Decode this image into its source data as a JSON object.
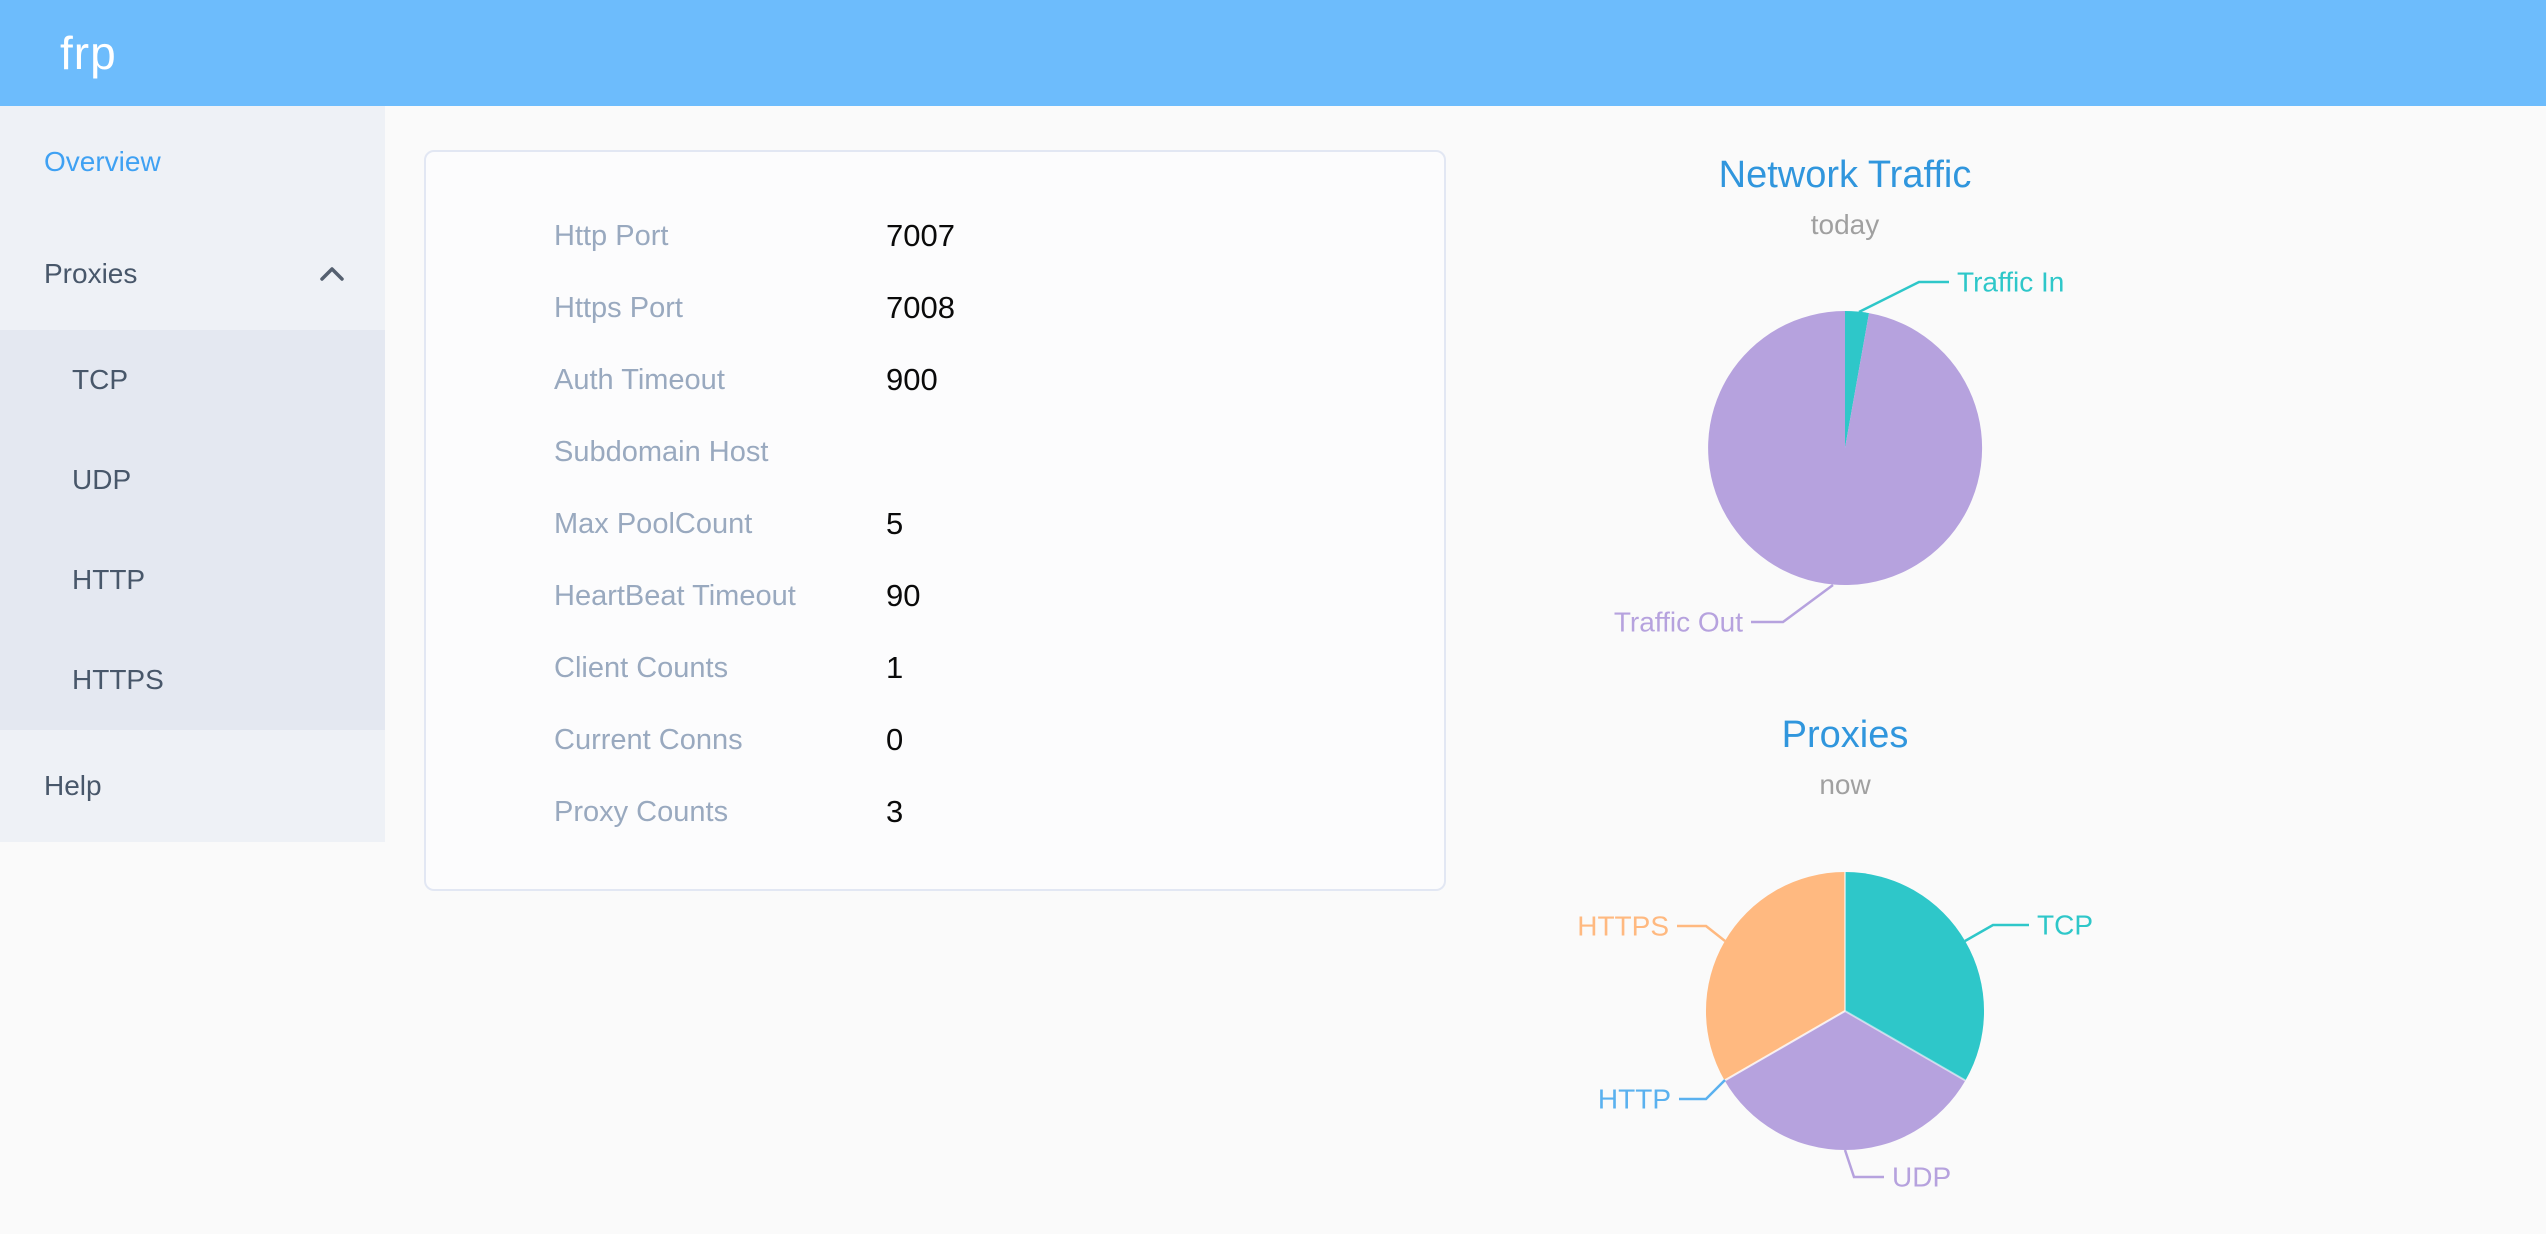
{
  "header": {
    "logo": "frp"
  },
  "sidebar": {
    "overview": "Overview",
    "proxies": "Proxies",
    "proxies_expanded": true,
    "proxies_children": [
      "TCP",
      "UDP",
      "HTTP",
      "HTTPS"
    ],
    "help": "Help"
  },
  "overview_card": {
    "rows": [
      {
        "label": "Http Port",
        "value": "7007"
      },
      {
        "label": "Https Port",
        "value": "7008"
      },
      {
        "label": "Auth Timeout",
        "value": "900"
      },
      {
        "label": "Subdomain Host",
        "value": ""
      },
      {
        "label": "Max PoolCount",
        "value": "5"
      },
      {
        "label": "HeartBeat Timeout",
        "value": "90"
      },
      {
        "label": "Client Counts",
        "value": "1"
      },
      {
        "label": "Current Conns",
        "value": "0"
      },
      {
        "label": "Proxy Counts",
        "value": "3"
      }
    ]
  },
  "chart_data": [
    {
      "type": "pie",
      "title": "Network Traffic",
      "subtitle": "today",
      "value_note": "slice values are percent of pie, estimated from rendered chart",
      "slices": [
        {
          "name": "Traffic In",
          "value": 2.8,
          "color": "#2ec7c9"
        },
        {
          "name": "Traffic Out",
          "value": 97.2,
          "color": "#b6a2de"
        }
      ],
      "legend_position": "callout-labels"
    },
    {
      "type": "pie",
      "title": "Proxies",
      "subtitle": "now",
      "value_note": "proxy counts by type; HTTP is zero-width slice with label only",
      "slices": [
        {
          "name": "TCP",
          "value": 1,
          "color": "#2ec7c9"
        },
        {
          "name": "UDP",
          "value": 1,
          "color": "#b6a2de"
        },
        {
          "name": "HTTP",
          "value": 0,
          "color": "#5ab1ef"
        },
        {
          "name": "HTTPS",
          "value": 1,
          "color": "#ffb980"
        }
      ],
      "legend_position": "callout-labels"
    }
  ],
  "colors": {
    "header_bg": "#6dbcfc",
    "logo_text": "#ffffff",
    "sidebar_bg": "#eef1f6",
    "submenu_bg": "#e4e8f1",
    "menu_text": "#48576a",
    "menu_active": "#3fa1f3",
    "page_bg": "#fafafa",
    "card_border": "#e2e7f3",
    "label_text": "#99a9bf",
    "value_text": "#0a0a0a",
    "chart_title": "#3096dd",
    "chart_subtitle": "#a0a0a0",
    "pie_teal": "#2ec7c9",
    "pie_purple": "#b6a2de",
    "pie_blue": "#5ab1ef",
    "pie_orange": "#ffb980"
  }
}
